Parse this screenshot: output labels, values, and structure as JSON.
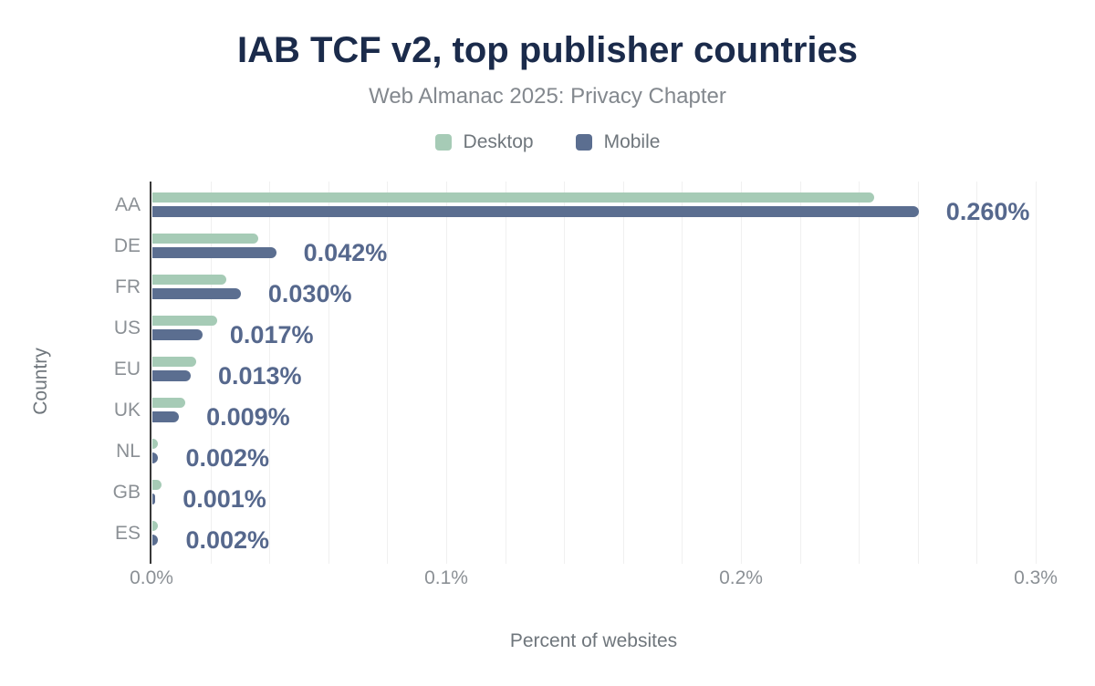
{
  "title": "IAB TCF v2, top publisher countries",
  "subtitle": "Web Almanac 2025: Privacy Chapter",
  "colors": {
    "desktop": "#a6cbb6",
    "mobile": "#5b6e90",
    "title": "#1b2b4b",
    "value_label": "#56688d",
    "axis_line": "#383838",
    "gridline": "#f0f0f0",
    "tick_label": "#8b9095"
  },
  "legend": [
    {
      "label": "Desktop",
      "color": "#a6cbb6"
    },
    {
      "label": "Mobile",
      "color": "#5b6e90"
    }
  ],
  "chart_data": {
    "type": "bar",
    "orientation": "horizontal",
    "title": "IAB TCF v2, top publisher countries",
    "subtitle": "Web Almanac 2025: Privacy Chapter",
    "xlabel": "Percent of websites",
    "ylabel": "Country",
    "categories": [
      "AA",
      "DE",
      "FR",
      "US",
      "EU",
      "UK",
      "NL",
      "GB",
      "ES"
    ],
    "series": [
      {
        "name": "Desktop",
        "color": "#a6cbb6",
        "values": [
          0.245,
          0.036,
          0.025,
          0.022,
          0.015,
          0.011,
          0.002,
          0.003,
          0.002
        ]
      },
      {
        "name": "Mobile",
        "color": "#5b6e90",
        "values": [
          0.26,
          0.042,
          0.03,
          0.017,
          0.013,
          0.009,
          0.002,
          0.001,
          0.002
        ]
      }
    ],
    "bar_labels": [
      "0.260%",
      "0.042%",
      "0.030%",
      "0.017%",
      "0.013%",
      "0.009%",
      "0.002%",
      "0.001%",
      "0.002%"
    ],
    "x_ticks": [
      "0.0%",
      "0.1%",
      "0.2%",
      "0.3%"
    ],
    "x_tick_values": [
      0,
      0.1,
      0.2,
      0.3
    ],
    "xlim": [
      0,
      0.3
    ],
    "gridline_step": 0.02,
    "grid": true,
    "legend_position": "top"
  }
}
